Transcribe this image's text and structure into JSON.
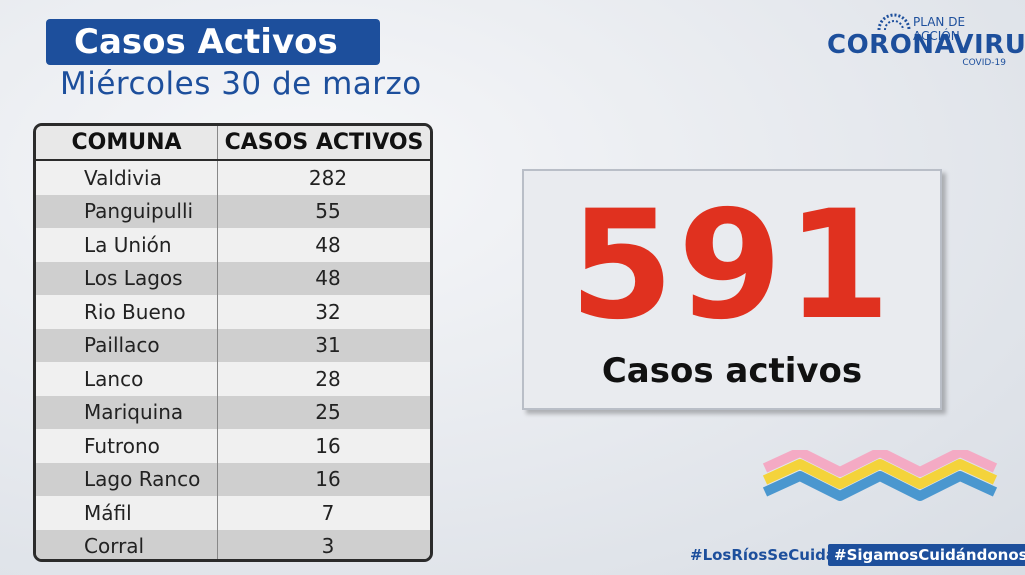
{
  "header": {
    "title": "Casos Activos",
    "date": "Miércoles 30 de marzo"
  },
  "logo": {
    "plan": "PLAN DE ACCIÓN",
    "main": "CORONAVIRUS",
    "sub": "COVID-19",
    "primary_color": "#1d4f9c"
  },
  "table": {
    "headers": [
      "COMUNA",
      "CASOS ACTIVOS"
    ],
    "rows": [
      {
        "comuna": "Valdivia",
        "casos": "282"
      },
      {
        "comuna": "Panguipulli",
        "casos": "55"
      },
      {
        "comuna": "La Unión",
        "casos": "48"
      },
      {
        "comuna": "Los Lagos",
        "casos": "48"
      },
      {
        "comuna": "Rio Bueno",
        "casos": "32"
      },
      {
        "comuna": "Paillaco",
        "casos": "31"
      },
      {
        "comuna": "Lanco",
        "casos": "28"
      },
      {
        "comuna": "Mariquina",
        "casos": "25"
      },
      {
        "comuna": "Futrono",
        "casos": "16"
      },
      {
        "comuna": "Lago Ranco",
        "casos": "16"
      },
      {
        "comuna": "Máfil",
        "casos": "7"
      },
      {
        "comuna": "Corral",
        "casos": "3"
      }
    ]
  },
  "total": {
    "value": "591",
    "label": "Casos activos",
    "color": "#e0311f"
  },
  "hashtags": [
    "#LosRíosSeCuida",
    "#SigamosCuidándonos"
  ]
}
